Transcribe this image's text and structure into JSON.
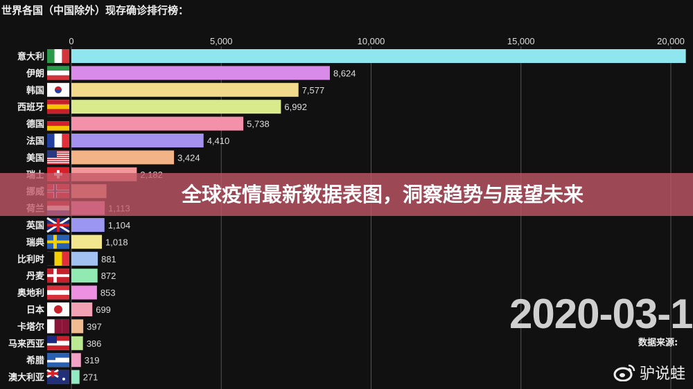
{
  "chart_data": {
    "type": "bar",
    "orientation": "horizontal",
    "title": "世界各国（中国除外）现存确诊排行榜：",
    "x_ticks": [
      0,
      5000,
      10000,
      15000,
      20000
    ],
    "x_tick_labels": [
      "0",
      "5,000",
      "10,000",
      "15,000",
      "20,000"
    ],
    "xlim": [
      0,
      20600
    ],
    "grid": true,
    "categories": [
      "意大利",
      "伊朗",
      "韩国",
      "西班牙",
      "德国",
      "法国",
      "美国",
      "瑞士",
      "挪威",
      "荷兰",
      "英国",
      "瑞典",
      "比利时",
      "丹麦",
      "奥地利",
      "日本",
      "卡塔尔",
      "马来西亚",
      "希腊",
      "澳大利亚"
    ],
    "flags": [
      "it",
      "ir",
      "kr",
      "es",
      "de",
      "fr",
      "us",
      "ch",
      "no",
      "nl",
      "gb",
      "se",
      "be",
      "dk",
      "at",
      "jp",
      "qa",
      "my",
      "gr",
      "au"
    ],
    "values": [
      20500,
      8624,
      7577,
      6992,
      5738,
      4410,
      3424,
      2182,
      1170,
      1113,
      1104,
      1018,
      881,
      872,
      853,
      699,
      397,
      386,
      319,
      271
    ],
    "value_labels": [
      "",
      "8,624",
      "7,577",
      "6,992",
      "5,738",
      "4,410",
      "3,424",
      "2,182",
      "",
      "1,113",
      "1,104",
      "1,018",
      "881",
      "872",
      "853",
      "699",
      "397",
      "386",
      "319",
      "271"
    ],
    "colors": [
      "#8fe6ee",
      "#d88be8",
      "#f2da8c",
      "#d8ea8c",
      "#f390aa",
      "#a592ef",
      "#f2b386",
      "#f29898",
      "#e8a48e",
      "#ea8cc6",
      "#9b96f2",
      "#f2e68e",
      "#a2c2f2",
      "#90eab2",
      "#ee90e2",
      "#f2a2b4",
      "#f2bc92",
      "#bae992",
      "#f2a2c4",
      "#92eac4"
    ],
    "date": "2020-03-1",
    "source_label": "数据来源: "
  },
  "banner": {
    "text": "全球疫情最新数据表图，洞察趋势与展望未来"
  },
  "watermark": {
    "icon": "weibo-icon",
    "text": "驴说蛙"
  }
}
